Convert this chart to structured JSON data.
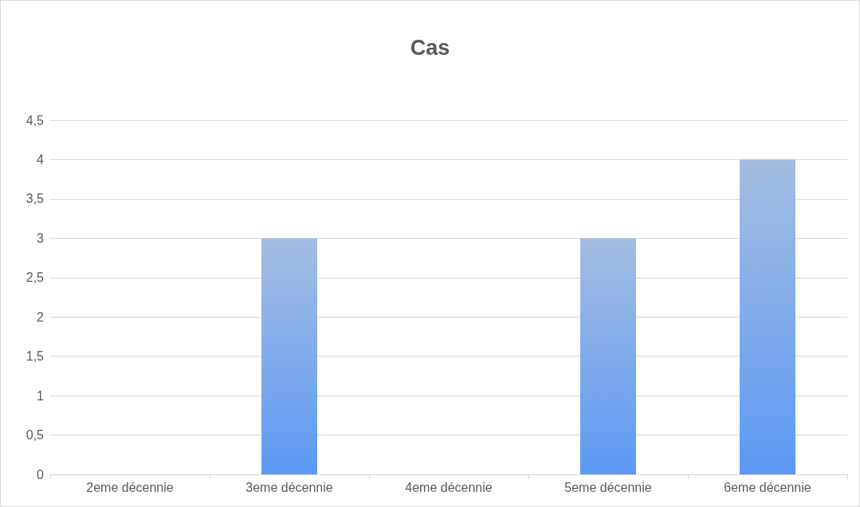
{
  "chart_data": {
    "type": "bar",
    "title": "Cas",
    "categories": [
      "2eme décennie",
      "3eme décennie",
      "4eme décennie",
      "5eme décennie",
      "6eme décennie"
    ],
    "values": [
      0,
      3,
      0,
      3,
      4
    ],
    "color": "#4a7bc4",
    "ylim": [
      0,
      4.5
    ],
    "yticks": [
      0,
      {
        "value": 0.5,
        "label": "0,5"
      },
      1,
      {
        "value": 1.5,
        "label": "1,5"
      },
      2,
      {
        "value": 2.5,
        "label": "2,5"
      },
      3,
      {
        "value": 3.5,
        "label": "3,5"
      },
      4,
      {
        "value": 4.5,
        "label": "4,5"
      }
    ],
    "grid": "y"
  }
}
